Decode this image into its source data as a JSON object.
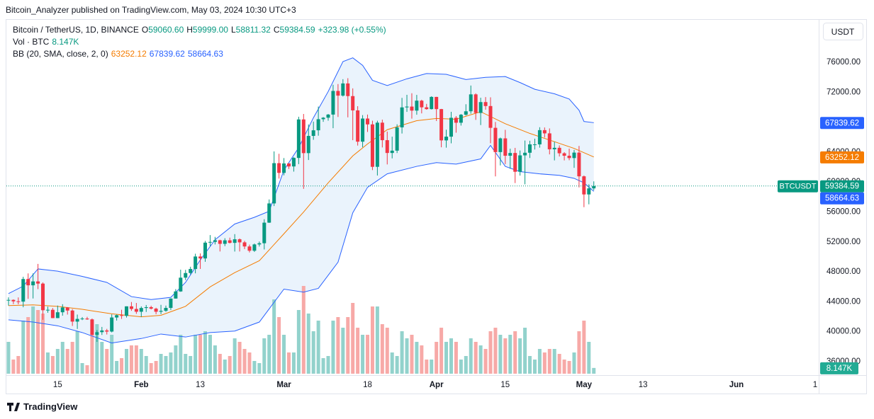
{
  "header": {
    "published": "Bitcoin_Analyzer published on TradingView.com, May 03, 2024 10:30 UTC+3"
  },
  "footer": {
    "brand": "TradingView"
  },
  "chart_data": {
    "type": "candlestick",
    "title": "Bitcoin / TetherUS, 1D, BINANCE",
    "symbol": "BTCUSDT",
    "currency": "USDT",
    "legend": [
      {
        "label": "O",
        "value": "59060.60"
      },
      {
        "label": "H",
        "value": "59999.00"
      },
      {
        "label": "L",
        "value": "58811.32"
      },
      {
        "label": "C",
        "value": "59384.59"
      }
    ],
    "change": "+323.98 (+0.55%)",
    "up_color": "#089981",
    "down_color": "#f23645",
    "x": [
      "2024-01-05",
      "2024-01-06",
      "2024-01-07",
      "2024-01-08",
      "2024-01-09",
      "2024-01-10",
      "2024-01-11",
      "2024-01-12",
      "2024-01-13",
      "2024-01-14",
      "2024-01-15",
      "2024-01-16",
      "2024-01-17",
      "2024-01-18",
      "2024-01-19",
      "2024-01-20",
      "2024-01-21",
      "2024-01-22",
      "2024-01-23",
      "2024-01-24",
      "2024-01-25",
      "2024-01-26",
      "2024-01-27",
      "2024-01-28",
      "2024-01-29",
      "2024-01-30",
      "2024-01-31",
      "2024-02-01",
      "2024-02-02",
      "2024-02-03",
      "2024-02-04",
      "2024-02-05",
      "2024-02-06",
      "2024-02-07",
      "2024-02-08",
      "2024-02-09",
      "2024-02-10",
      "2024-02-11",
      "2024-02-12",
      "2024-02-13",
      "2024-02-14",
      "2024-02-15",
      "2024-02-16",
      "2024-02-17",
      "2024-02-18",
      "2024-02-19",
      "2024-02-20",
      "2024-02-21",
      "2024-02-22",
      "2024-02-23",
      "2024-02-24",
      "2024-02-25",
      "2024-02-26",
      "2024-02-27",
      "2024-02-28",
      "2024-02-29",
      "2024-03-01",
      "2024-03-02",
      "2024-03-03",
      "2024-03-04",
      "2024-03-05",
      "2024-03-06",
      "2024-03-07",
      "2024-03-08",
      "2024-03-09",
      "2024-03-10",
      "2024-03-11",
      "2024-03-12",
      "2024-03-13",
      "2024-03-14",
      "2024-03-15",
      "2024-03-16",
      "2024-03-17",
      "2024-03-18",
      "2024-03-19",
      "2024-03-20",
      "2024-03-21",
      "2024-03-22",
      "2024-03-23",
      "2024-03-24",
      "2024-03-25",
      "2024-03-26",
      "2024-03-27",
      "2024-03-28",
      "2024-03-29",
      "2024-03-30",
      "2024-03-31",
      "2024-04-01",
      "2024-04-02",
      "2024-04-03",
      "2024-04-04",
      "2024-04-05",
      "2024-04-06",
      "2024-04-07",
      "2024-04-08",
      "2024-04-09",
      "2024-04-10",
      "2024-04-11",
      "2024-04-12",
      "2024-04-13",
      "2024-04-14",
      "2024-04-15",
      "2024-04-16",
      "2024-04-17",
      "2024-04-18",
      "2024-04-19",
      "2024-04-20",
      "2024-04-21",
      "2024-04-22",
      "2024-04-23",
      "2024-04-24",
      "2024-04-25",
      "2024-04-26",
      "2024-04-27",
      "2024-04-28",
      "2024-04-29",
      "2024-04-30",
      "2024-05-01",
      "2024-05-02",
      "2024-05-03"
    ],
    "open": [
      44150,
      44160,
      43970,
      43930,
      46950,
      46110,
      46630,
      46340,
      42780,
      42840,
      41730,
      42510,
      43150,
      42740,
      41260,
      41620,
      41670,
      41560,
      39500,
      39850,
      40080,
      39930,
      41810,
      42120,
      42030,
      43300,
      42950,
      42580,
      43080,
      43190,
      42990,
      42580,
      42700,
      43090,
      44340,
      45290,
      47130,
      47750,
      48290,
      49960,
      49700,
      51810,
      51910,
      52130,
      51650,
      52120,
      51780,
      52260,
      51850,
      51300,
      50730,
      51570,
      51730,
      54480,
      57050,
      62430,
      61130,
      62390,
      61990,
      63130,
      68270,
      63770,
      66070,
      66820,
      68300,
      68500,
      68920,
      72080,
      71450,
      73080,
      71390,
      69480,
      65300,
      68390,
      67610,
      61940,
      67840,
      65500,
      63790,
      64100,
      67210,
      69880,
      69990,
      69450,
      70780,
      69890,
      69650,
      71280,
      69650,
      65470,
      65970,
      68490,
      67830,
      68900,
      69360,
      71620,
      69140,
      70590,
      70060,
      67150,
      63910,
      65740,
      63420,
      63790,
      61280,
      63470,
      63820,
      64940,
      64940,
      66840,
      66410,
      64280,
      64480,
      63750,
      63420,
      63110,
      63840,
      60670,
      58250,
      59060.6
    ],
    "high": [
      44500,
      44230,
      44490,
      47250,
      47700,
      47700,
      48970,
      46500,
      43260,
      43080,
      43400,
      43580,
      43200,
      42930,
      42200,
      41870,
      41900,
      41680,
      40130,
      40550,
      40290,
      42230,
      42200,
      42840,
      43300,
      43880,
      43750,
      43290,
      43480,
      43380,
      43120,
      43500,
      43400,
      44380,
      45600,
      48200,
      48170,
      48590,
      50330,
      50370,
      52040,
      52820,
      52580,
      52200,
      52400,
      52480,
      52950,
      52370,
      52050,
      51550,
      51690,
      51960,
      54940,
      57580,
      64000,
      63680,
      63110,
      62430,
      63230,
      68630,
      69000,
      67600,
      67980,
      69990,
      68590,
      69000,
      72900,
      73000,
      73650,
      73780,
      72420,
      70040,
      68850,
      68920,
      68100,
      68100,
      68240,
      66650,
      65970,
      67620,
      71150,
      71560,
      71770,
      71550,
      70900,
      70350,
      71370,
      71290,
      69680,
      66900,
      69290,
      68720,
      69000,
      70300,
      72800,
      71760,
      71170,
      71260,
      71230,
      67930,
      65850,
      66880,
      64360,
      64470,
      64120,
      65450,
      65420,
      65700,
      67230,
      67200,
      67070,
      65280,
      64800,
      63900,
      64370,
      64200,
      64730,
      60780,
      59600,
      59999
    ],
    "low": [
      43400,
      43600,
      43570,
      43180,
      44300,
      44350,
      45600,
      41500,
      42440,
      41720,
      41720,
      42050,
      42200,
      40680,
      40280,
      41460,
      41500,
      39450,
      38550,
      39480,
      39540,
      39820,
      41400,
      41620,
      41800,
      42700,
      42300,
      41880,
      42550,
      42880,
      42250,
      42260,
      42570,
      42800,
      44330,
      45240,
      46800,
      47550,
      47710,
      48300,
      49250,
      51330,
      51570,
      50630,
      51340,
      51700,
      50620,
      50630,
      50950,
      50500,
      50570,
      51290,
      50900,
      54450,
      56700,
      60370,
      60800,
      61650,
      61300,
      62300,
      59000,
      62850,
      65550,
      66100,
      67950,
      68100,
      67100,
      68600,
      71330,
      68550,
      65500,
      64780,
      64550,
      66600,
      61500,
      60780,
      64530,
      62260,
      63070,
      63780,
      66390,
      69280,
      68380,
      68900,
      69080,
      69570,
      69600,
      68060,
      64550,
      64500,
      65080,
      66500,
      67450,
      68780,
      69040,
      68210,
      67520,
      69570,
      65090,
      60660,
      62130,
      62300,
      61680,
      59770,
      60770,
      59600,
      63120,
      64250,
      64500,
      65850,
      63600,
      62800,
      63320,
      62800,
      62820,
      61800,
      59190,
      56550,
      56930,
      58811.32
    ],
    "close": [
      44160,
      43970,
      43930,
      46950,
      46110,
      46630,
      46340,
      42780,
      42840,
      41730,
      42510,
      43150,
      42740,
      41260,
      41620,
      41670,
      41560,
      39500,
      39850,
      40080,
      39930,
      41810,
      42120,
      42030,
      43300,
      42950,
      42580,
      43080,
      43190,
      42990,
      42580,
      42700,
      43090,
      44340,
      45290,
      47130,
      47750,
      48290,
      49960,
      49700,
      51810,
      51910,
      52130,
      51650,
      52120,
      51780,
      52260,
      51850,
      51300,
      50730,
      51570,
      51730,
      54480,
      57050,
      62430,
      61130,
      62390,
      61990,
      63130,
      68270,
      63770,
      66070,
      66820,
      68300,
      68500,
      68920,
      72080,
      71450,
      73080,
      71390,
      69480,
      65300,
      68390,
      67610,
      61940,
      67840,
      65500,
      63790,
      64100,
      67210,
      69880,
      69990,
      69450,
      70780,
      69890,
      69650,
      71280,
      69650,
      65470,
      65970,
      68490,
      67830,
      68900,
      69360,
      71620,
      69140,
      70590,
      70060,
      67150,
      63910,
      65740,
      63420,
      63790,
      61280,
      63470,
      63820,
      64940,
      64940,
      66840,
      66410,
      64280,
      64480,
      63750,
      63420,
      63110,
      63840,
      60670,
      58250,
      59060,
      59384.59
    ],
    "volume": {
      "label": "Vol · BTC",
      "last_label": "8.147K",
      "up_color": "#92d2cc",
      "down_color": "#f7a9a7",
      "badge_color": "#22ab94",
      "values": [
        45000,
        20000,
        25000,
        75000,
        80000,
        95000,
        90000,
        85000,
        30000,
        25000,
        35000,
        45000,
        35000,
        45000,
        60000,
        15000,
        12000,
        55000,
        70000,
        45000,
        35000,
        55000,
        18000,
        22000,
        35000,
        40000,
        40000,
        35000,
        25000,
        15000,
        18000,
        28000,
        25000,
        30000,
        40000,
        55000,
        28000,
        25000,
        55000,
        55000,
        60000,
        55000,
        40000,
        28000,
        20000,
        25000,
        50000,
        45000,
        35000,
        30000,
        18000,
        15000,
        50000,
        55000,
        105000,
        80000,
        55000,
        30000,
        30000,
        90000,
        124000,
        85000,
        60000,
        75000,
        22000,
        25000,
        75000,
        80000,
        65000,
        80000,
        100000,
        65000,
        55000,
        55000,
        95000,
        95000,
        70000,
        65000,
        30000,
        25000,
        60000,
        50000,
        55000,
        45000,
        40000,
        20000,
        20000,
        45000,
        65000,
        45000,
        50000,
        45000,
        20000,
        25000,
        50000,
        45000,
        40000,
        35000,
        60000,
        65000,
        55000,
        50000,
        55000,
        60000,
        50000,
        65000,
        25000,
        20000,
        35000,
        30000,
        35000,
        35000,
        28000,
        20000,
        18000,
        30000,
        60000,
        75000,
        45000,
        8147
      ]
    },
    "bands": {
      "label": "BB (20, SMA, close, 2, 0)",
      "fill": "#eaf3fc",
      "lines": [
        {
          "color": "#f57c00",
          "x": [
            "2024-01-05",
            "2024-01-10",
            "2024-01-15",
            "2024-01-20",
            "2024-01-26",
            "2024-02-01",
            "2024-02-05",
            "2024-02-10",
            "2024-02-15",
            "2024-02-20",
            "2024-02-25",
            "2024-03-01",
            "2024-03-05",
            "2024-03-10",
            "2024-03-15",
            "2024-03-18",
            "2024-03-22",
            "2024-03-28",
            "2024-04-01",
            "2024-04-05",
            "2024-04-10",
            "2024-04-15",
            "2024-04-20",
            "2024-04-25",
            "2024-04-29",
            "2024-05-03"
          ],
          "values": [
            43400,
            43500,
            43300,
            42900,
            42300,
            41900,
            42100,
            43300,
            45900,
            47800,
            49400,
            53000,
            55900,
            59800,
            63400,
            65000,
            66900,
            68100,
            68400,
            68300,
            69300,
            67700,
            66400,
            65300,
            64400,
            63252.12
          ]
        },
        {
          "color": "#2962ff",
          "x": [
            "2024-01-05",
            "2024-01-08",
            "2024-01-11",
            "2024-01-15",
            "2024-01-20",
            "2024-01-25",
            "2024-01-30",
            "2024-02-03",
            "2024-02-07",
            "2024-02-10",
            "2024-02-13",
            "2024-02-16",
            "2024-02-20",
            "2024-02-24",
            "2024-02-27",
            "2024-03-01",
            "2024-03-04",
            "2024-03-07",
            "2024-03-10",
            "2024-03-13",
            "2024-03-15",
            "2024-03-17",
            "2024-03-19",
            "2024-03-22",
            "2024-03-26",
            "2024-03-30",
            "2024-04-03",
            "2024-04-07",
            "2024-04-11",
            "2024-04-15",
            "2024-04-18",
            "2024-04-21",
            "2024-04-25",
            "2024-04-28",
            "2024-04-30",
            "2024-05-01",
            "2024-05-03"
          ],
          "values": [
            45000,
            46000,
            48300,
            48000,
            47300,
            46500,
            44600,
            44200,
            44500,
            46500,
            49500,
            52200,
            54300,
            55200,
            56000,
            61500,
            64500,
            68500,
            72000,
            76000,
            76500,
            75500,
            73500,
            72800,
            73700,
            74400,
            74300,
            73600,
            73900,
            74000,
            73200,
            72300,
            71700,
            71000,
            69500,
            68000,
            67839.62
          ]
        },
        {
          "color": "#2962ff",
          "x": [
            "2024-01-05",
            "2024-01-10",
            "2024-01-15",
            "2024-01-20",
            "2024-01-26",
            "2024-02-01",
            "2024-02-05",
            "2024-02-10",
            "2024-02-15",
            "2024-02-20",
            "2024-02-25",
            "2024-03-01",
            "2024-03-05",
            "2024-03-08",
            "2024-03-12",
            "2024-03-15",
            "2024-03-18",
            "2024-03-22",
            "2024-03-28",
            "2024-04-01",
            "2024-04-05",
            "2024-04-10",
            "2024-04-12",
            "2024-04-15",
            "2024-04-18",
            "2024-04-22",
            "2024-04-26",
            "2024-04-29",
            "2024-05-01",
            "2024-05-03"
          ],
          "values": [
            41500,
            41200,
            40700,
            39800,
            38400,
            39000,
            39600,
            39200,
            39800,
            40000,
            41200,
            45600,
            45200,
            45700,
            49200,
            55800,
            59200,
            61000,
            62000,
            62500,
            62300,
            63000,
            64800,
            62000,
            61300,
            61000,
            60800,
            60400,
            59800,
            58664.63
          ]
        }
      ]
    },
    "xlim": [
      "2024-01-04",
      "2024-06-17"
    ],
    "xticks": [
      {
        "value": "2024-01-15",
        "label": "15"
      },
      {
        "value": "2024-02-01",
        "label": "Feb"
      },
      {
        "value": "2024-02-13",
        "label": "13"
      },
      {
        "value": "2024-03-01",
        "label": "Mar"
      },
      {
        "value": "2024-03-18",
        "label": "18"
      },
      {
        "value": "2024-04-01",
        "label": "Apr"
      },
      {
        "value": "2024-04-15",
        "label": "15"
      },
      {
        "value": "2024-05-01",
        "label": "May"
      },
      {
        "value": "2024-05-13",
        "label": "13"
      },
      {
        "value": "2024-06-01",
        "label": "Jun"
      },
      {
        "value": "2024-06-17",
        "label": "1"
      }
    ],
    "ylim": [
      34300,
      81580
    ],
    "yticks": [
      {
        "value": 36000,
        "label": "36000.00"
      },
      {
        "value": 40000,
        "label": "40000.00"
      },
      {
        "value": 44000,
        "label": "44000.00"
      },
      {
        "value": 48000,
        "label": "48000.00"
      },
      {
        "value": 52000,
        "label": "52000.00"
      },
      {
        "value": 56000,
        "label": "56000.00"
      },
      {
        "value": 60000,
        "label": "60000.00"
      },
      {
        "value": 64000,
        "label": "64000.00"
      },
      {
        "value": 68000,
        "label": "68000.00"
      },
      {
        "value": 72000,
        "label": "72000.00"
      },
      {
        "value": 76000,
        "label": "76000.00"
      }
    ],
    "last_price_line": true
  }
}
